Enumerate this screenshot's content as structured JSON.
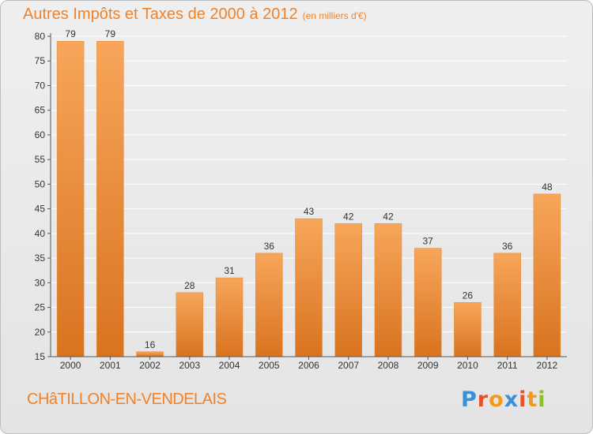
{
  "title": {
    "main": "Autres Impôts et Taxes de 2000 à 2012",
    "unit": "(en milliers d'€)"
  },
  "commune": "CHâTILLON-EN-VENDELAIS",
  "logo": {
    "text": "Proxiti",
    "colors": [
      "#3a8fd6",
      "#e8502a",
      "#f29a1e",
      "#3a8fd6",
      "#e8502a",
      "#f29a1e",
      "#8bbf2b"
    ]
  },
  "colors": {
    "bar_top": "#f7a65a",
    "bar_bottom": "#d9731f",
    "axis": "#555555",
    "grid": "#ffffff",
    "label": "#333333"
  },
  "chart_data": {
    "type": "bar",
    "title": "Autres Impôts et Taxes de 2000 à 2012",
    "categories": [
      "2000",
      "2001",
      "2002",
      "2003",
      "2004",
      "2005",
      "2006",
      "2007",
      "2008",
      "2009",
      "2010",
      "2011",
      "2012"
    ],
    "values": [
      79,
      79,
      16,
      28,
      31,
      36,
      43,
      42,
      42,
      37,
      26,
      36,
      48
    ],
    "ylim": [
      15,
      80
    ],
    "yticks": [
      15,
      20,
      25,
      30,
      35,
      40,
      45,
      50,
      55,
      60,
      65,
      70,
      75,
      80
    ],
    "xlabel": "",
    "ylabel": "",
    "grid": true
  }
}
